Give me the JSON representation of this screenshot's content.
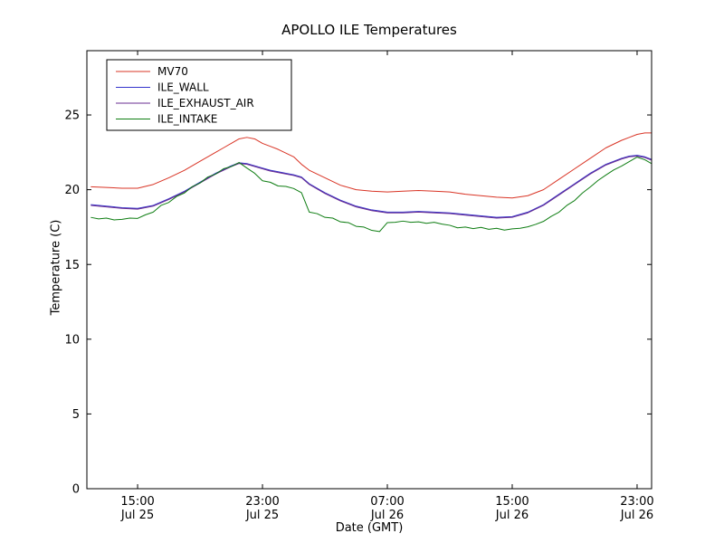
{
  "chart_data": {
    "type": "line",
    "title": "APOLLO ILE Temperatures",
    "xlabel": "Date (GMT)",
    "ylabel": "Temperature (C)",
    "x_unit": "hours since Jul 25 00:00 GMT",
    "xlim": [
      11.75,
      47.93
    ],
    "ylim": [
      0,
      29.3
    ],
    "grid": false,
    "legend_position": "upper left",
    "background": "#ffffff",
    "axis_color": "#000000",
    "yticks": [
      0,
      5,
      10,
      15,
      20,
      25
    ],
    "xticks": [
      {
        "value": 15,
        "time": "15:00",
        "date": "Jul 25"
      },
      {
        "value": 23,
        "time": "23:00",
        "date": "Jul 25"
      },
      {
        "value": 31,
        "time": "07:00",
        "date": "Jul 26"
      },
      {
        "value": 39,
        "time": "15:00",
        "date": "Jul 26"
      },
      {
        "value": 47,
        "time": "23:00",
        "date": "Jul 26"
      }
    ],
    "series": [
      {
        "name": "MV70",
        "color": "#d93425",
        "x": [
          12,
          13,
          14,
          15,
          16,
          17,
          18,
          19,
          20,
          20.5,
          21,
          21.5,
          22,
          22.5,
          23,
          23.5,
          24,
          24.5,
          25,
          25.5,
          26,
          27,
          28,
          29,
          30,
          31,
          32,
          33,
          34,
          35,
          36,
          37,
          38,
          39,
          40,
          41,
          42,
          43,
          44,
          45,
          46,
          46.5,
          47,
          47.5,
          48
        ],
        "y": [
          20.2,
          20.15,
          20.1,
          20.1,
          20.35,
          20.8,
          21.3,
          21.9,
          22.5,
          22.8,
          23.1,
          23.4,
          23.5,
          23.4,
          23.1,
          22.9,
          22.7,
          22.45,
          22.2,
          21.7,
          21.3,
          20.8,
          20.3,
          20.0,
          19.9,
          19.85,
          19.9,
          19.95,
          19.9,
          19.85,
          19.7,
          19.6,
          19.5,
          19.45,
          19.6,
          20.0,
          20.7,
          21.4,
          22.1,
          22.8,
          23.3,
          23.5,
          23.7,
          23.8,
          23.8
        ]
      },
      {
        "name": "ILE_WALL",
        "color": "#3333cc",
        "x": [
          12,
          13,
          14,
          15,
          16,
          17,
          18,
          19,
          20,
          20.5,
          21,
          21.5,
          22,
          22.5,
          23,
          23.5,
          24,
          24.5,
          25,
          25.5,
          26,
          27,
          28,
          29,
          30,
          31,
          32,
          33,
          34,
          35,
          36,
          37,
          38,
          39,
          40,
          41,
          42,
          43,
          44,
          45,
          46,
          46.5,
          47,
          47.5,
          48
        ],
        "y": [
          19.0,
          18.9,
          18.8,
          18.75,
          18.95,
          19.4,
          19.9,
          20.5,
          21.1,
          21.35,
          21.6,
          21.8,
          21.75,
          21.6,
          21.45,
          21.3,
          21.2,
          21.1,
          21.0,
          20.85,
          20.4,
          19.8,
          19.3,
          18.9,
          18.65,
          18.5,
          18.5,
          18.55,
          18.5,
          18.45,
          18.35,
          18.25,
          18.15,
          18.2,
          18.5,
          19.0,
          19.7,
          20.4,
          21.1,
          21.7,
          22.1,
          22.25,
          22.3,
          22.2,
          22.0
        ]
      },
      {
        "name": "ILE_EXHAUST_AIR",
        "color": "#6a2d91",
        "x": [
          12,
          13,
          14,
          15,
          16,
          17,
          18,
          19,
          20,
          20.5,
          21,
          21.5,
          22,
          22.5,
          23,
          23.5,
          24,
          24.5,
          25,
          25.5,
          26,
          27,
          28,
          29,
          30,
          31,
          32,
          33,
          34,
          35,
          36,
          37,
          38,
          39,
          40,
          41,
          42,
          43,
          44,
          45,
          46,
          46.5,
          47,
          47.5,
          48
        ],
        "y": [
          18.95,
          18.85,
          18.75,
          18.7,
          18.9,
          19.35,
          19.85,
          20.45,
          21.05,
          21.3,
          21.55,
          21.75,
          21.7,
          21.55,
          21.4,
          21.25,
          21.15,
          21.05,
          20.95,
          20.8,
          20.35,
          19.75,
          19.25,
          18.85,
          18.6,
          18.45,
          18.45,
          18.5,
          18.45,
          18.4,
          18.3,
          18.2,
          18.1,
          18.15,
          18.45,
          18.95,
          19.65,
          20.35,
          21.05,
          21.65,
          22.05,
          22.2,
          22.25,
          22.15,
          21.95
        ]
      },
      {
        "name": "ILE_INTAKE",
        "color": "#0e7d12",
        "x": [
          12,
          12.5,
          13,
          13.5,
          14,
          14.5,
          15,
          15.5,
          16,
          16.5,
          17,
          17.5,
          18,
          18.5,
          19,
          19.5,
          20,
          20.5,
          21,
          21.5,
          22,
          22.5,
          23,
          23.5,
          24,
          24.5,
          25,
          25.5,
          26,
          26.5,
          27,
          27.5,
          28,
          28.5,
          29,
          29.5,
          30,
          30.5,
          31,
          31.5,
          32,
          32.5,
          33,
          33.5,
          34,
          34.5,
          35,
          35.5,
          36,
          36.5,
          37,
          37.5,
          38,
          38.5,
          39,
          39.5,
          40,
          40.5,
          41,
          41.5,
          42,
          42.5,
          43,
          43.5,
          44,
          44.5,
          45,
          45.5,
          46,
          46.5,
          47,
          47.5,
          48
        ],
        "y": [
          18.15,
          18.05,
          18.1,
          17.98,
          18.02,
          18.1,
          18.08,
          18.32,
          18.5,
          18.95,
          19.15,
          19.55,
          19.78,
          20.2,
          20.45,
          20.85,
          21.05,
          21.4,
          21.55,
          21.82,
          21.45,
          21.1,
          20.6,
          20.5,
          20.25,
          20.22,
          20.08,
          19.8,
          18.5,
          18.4,
          18.15,
          18.1,
          17.85,
          17.8,
          17.55,
          17.5,
          17.28,
          17.2,
          17.8,
          17.82,
          17.9,
          17.82,
          17.85,
          17.75,
          17.82,
          17.7,
          17.62,
          17.45,
          17.5,
          17.4,
          17.48,
          17.35,
          17.42,
          17.3,
          17.38,
          17.42,
          17.52,
          17.68,
          17.88,
          18.22,
          18.5,
          18.95,
          19.28,
          19.78,
          20.18,
          20.62,
          20.98,
          21.32,
          21.58,
          21.88,
          22.18,
          22.0,
          21.7
        ]
      }
    ]
  }
}
